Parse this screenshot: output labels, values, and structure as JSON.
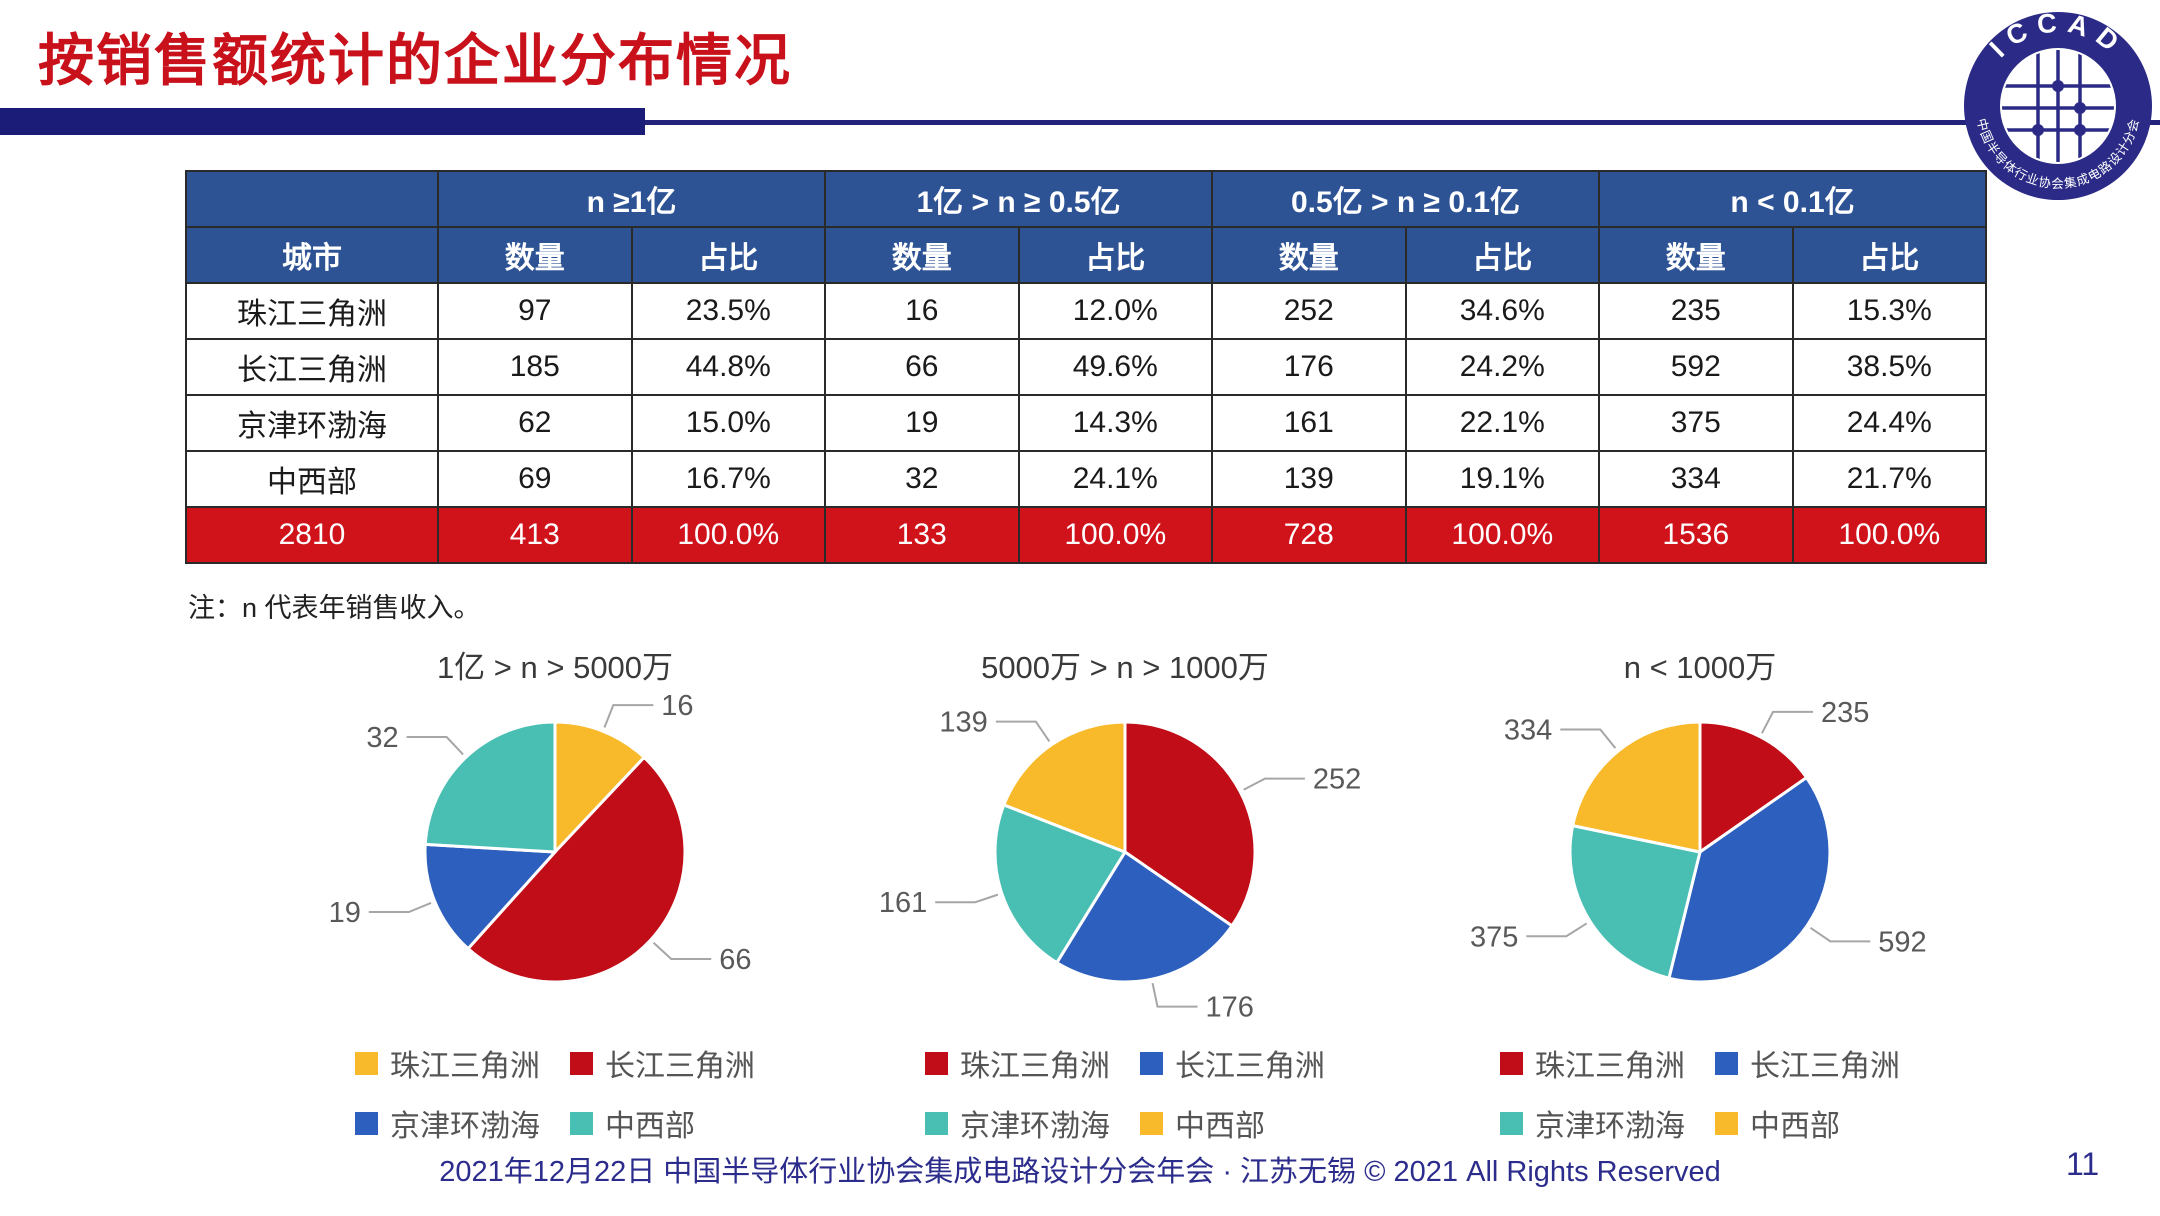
{
  "page": {
    "title": "按销售额统计的企业分布情况",
    "note": "注：n 代表年销售收入。",
    "footer": "2021年12月22日 中国半导体行业协会集成电路设计分会年会 · 江苏无锡 © 2021 All Rights Reserved",
    "page_number": "11"
  },
  "logo": {
    "top_text": "ICCAD",
    "bottom_text": "中国半导体行业协会集成电路设计分会"
  },
  "colors": {
    "title_red": "#c8111b",
    "heading_bar_navy": "#1b1b78",
    "table_header_navy": "#2e5395",
    "table_total_red": "#d0121b",
    "footer_navy": "#2c2c8c",
    "region_yellow": "#f8ba2b",
    "region_red": "#c00d17",
    "region_blue": "#2d5fbe",
    "region_teal": "#49bfb4",
    "leader_line_gray": "#a6a6a6",
    "data_label_gray": "#595959"
  },
  "table": {
    "col_city": "城市",
    "group_headers": [
      "n ≥1亿",
      "1亿 > n ≥ 0.5亿",
      "0.5亿 > n ≥ 0.1亿",
      "n < 0.1亿"
    ],
    "sub_headers": [
      "数量",
      "占比"
    ],
    "rows": [
      {
        "city": "珠江三角洲",
        "cells": [
          "97",
          "23.5%",
          "16",
          "12.0%",
          "252",
          "34.6%",
          "235",
          "15.3%"
        ]
      },
      {
        "city": "长江三角洲",
        "cells": [
          "185",
          "44.8%",
          "66",
          "49.6%",
          "176",
          "24.2%",
          "592",
          "38.5%"
        ]
      },
      {
        "city": "京津环渤海",
        "cells": [
          "62",
          "15.0%",
          "19",
          "14.3%",
          "161",
          "22.1%",
          "375",
          "24.4%"
        ]
      },
      {
        "city": "中西部",
        "cells": [
          "69",
          "16.7%",
          "32",
          "24.1%",
          "139",
          "19.1%",
          "334",
          "21.7%"
        ]
      }
    ],
    "total_row": {
      "city": "2810",
      "cells": [
        "413",
        "100.0%",
        "133",
        "100.0%",
        "728",
        "100.0%",
        "1536",
        "100.0%"
      ]
    }
  },
  "chart_data": [
    {
      "type": "pie",
      "title": "1亿 > n > 5000万",
      "start_angle": "top",
      "direction": "clockwise",
      "labels": [
        "珠江三角洲",
        "长江三角洲",
        "京津环渤海",
        "中西部"
      ],
      "values": [
        16,
        66,
        19,
        32
      ],
      "colors": [
        "#f8ba2b",
        "#c00d17",
        "#2d5fbe",
        "#49bfb4"
      ],
      "data_labels": [
        "16",
        "66",
        "19",
        "32"
      ],
      "legend_position": "bottom"
    },
    {
      "type": "pie",
      "title": "5000万 > n > 1000万",
      "start_angle": "top",
      "direction": "clockwise",
      "labels": [
        "珠江三角洲",
        "长江三角洲",
        "京津环渤海",
        "中西部"
      ],
      "values": [
        252,
        176,
        161,
        139
      ],
      "colors": [
        "#c00d17",
        "#2d5fbe",
        "#49bfb4",
        "#f8ba2b"
      ],
      "data_labels": [
        "252",
        "176",
        "161",
        "139"
      ],
      "legend_position": "bottom"
    },
    {
      "type": "pie",
      "title": "n < 1000万",
      "start_angle": "top",
      "direction": "clockwise",
      "labels": [
        "珠江三角洲",
        "长江三角洲",
        "京津环渤海",
        "中西部"
      ],
      "values": [
        235,
        592,
        375,
        334
      ],
      "colors": [
        "#c00d17",
        "#2d5fbe",
        "#49bfb4",
        "#f8ba2b"
      ],
      "data_labels": [
        "235",
        "592",
        "375",
        "334"
      ],
      "legend_position": "bottom"
    }
  ],
  "chart_layout": {
    "block_lefts": [
      270,
      840,
      1415
    ]
  }
}
